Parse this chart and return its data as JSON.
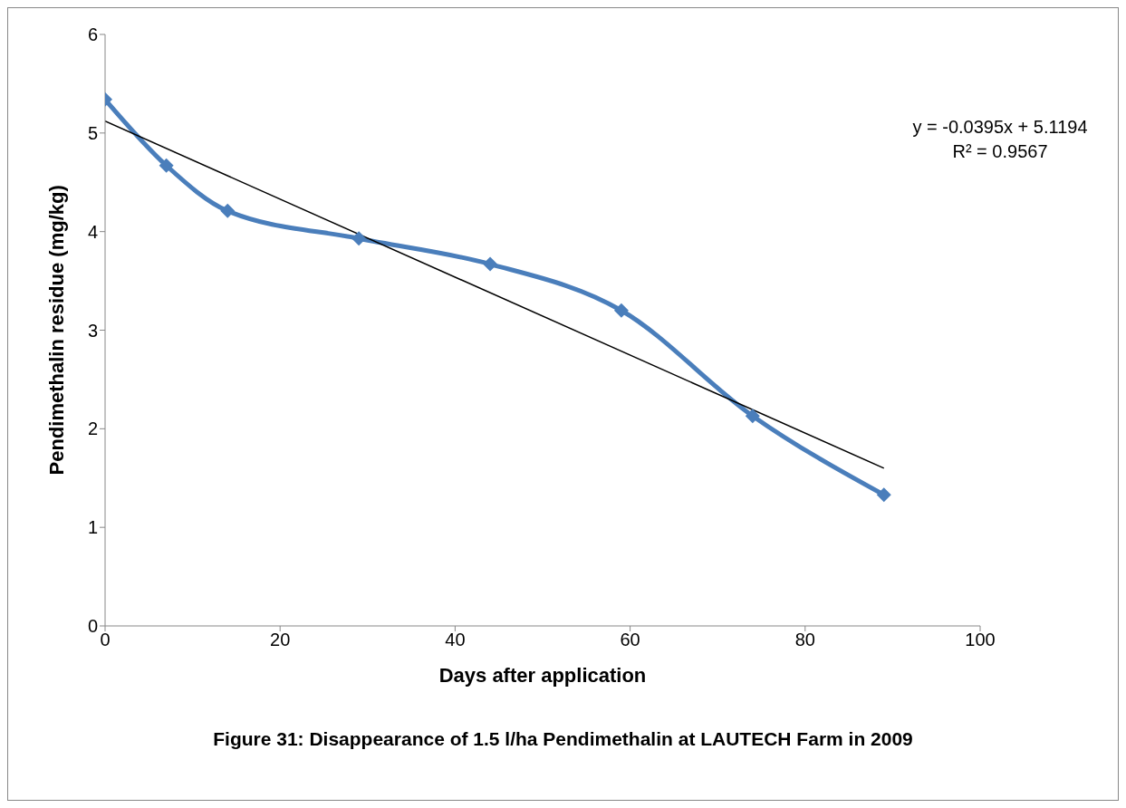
{
  "chart_data": {
    "type": "line",
    "title": "Figure 31: Disappearance of 1.5 l/ha Pendimethalin at LAUTECH Farm in 2009",
    "xlabel": "Days after application",
    "ylabel": "Pendimethalin residue (mg/kg)",
    "annotations": [
      "y = -0.0395x + 5.1194",
      "R² = 0.9567"
    ],
    "x": [
      0,
      7,
      14,
      29,
      44,
      59,
      74,
      89
    ],
    "series": [
      {
        "color": "#4a7ebb",
        "values": [
          5.34,
          4.67,
          4.21,
          3.93,
          3.67,
          3.2,
          2.13,
          1.33
        ],
        "marker": "diamond"
      },
      {
        "type": "line",
        "color": "#000000",
        "x": [
          0,
          89
        ],
        "values": [
          5.12,
          1.6
        ],
        "marker": "none"
      }
    ],
    "xlim": [
      0,
      100
    ],
    "xticks": [
      0,
      20,
      40,
      60,
      80,
      100
    ],
    "ylim": [
      0,
      6
    ],
    "yticks": [
      0,
      1,
      2,
      3,
      4,
      5,
      6
    ]
  }
}
